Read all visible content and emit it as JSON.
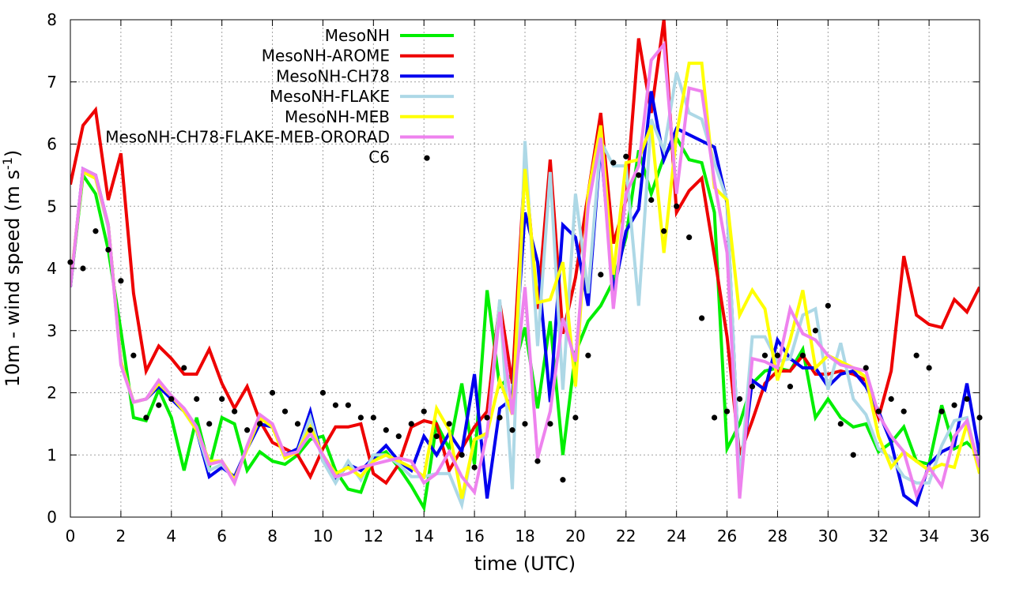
{
  "chart_data": {
    "type": "line",
    "title": "",
    "xlabel": "time (UTC)",
    "ylabel": "10m - wind speed  (m s",
    "ylabel_sup": "-1",
    "ylabel_end": ")",
    "xlim": [
      0,
      36
    ],
    "ylim": [
      0,
      8
    ],
    "xticks": [
      0,
      2,
      4,
      6,
      8,
      10,
      12,
      14,
      16,
      18,
      20,
      22,
      24,
      26,
      28,
      30,
      32,
      34,
      36
    ],
    "yticks": [
      0,
      1,
      2,
      3,
      4,
      5,
      6,
      7,
      8
    ],
    "grid": true,
    "legend_position": "top-left",
    "x": [
      0,
      0.5,
      1,
      1.5,
      2,
      2.5,
      3,
      3.5,
      4,
      4.5,
      5,
      5.5,
      6,
      6.5,
      7,
      7.5,
      8,
      8.5,
      9,
      9.5,
      10,
      10.5,
      11,
      11.5,
      12,
      12.5,
      13,
      13.5,
      14,
      14.5,
      15,
      15.5,
      16,
      16.5,
      17,
      17.5,
      18,
      18.5,
      19,
      19.5,
      20,
      20.5,
      21,
      21.5,
      22,
      22.5,
      23,
      23.5,
      24,
      24.5,
      25,
      25.5,
      26,
      26.5,
      27,
      27.5,
      28,
      28.5,
      29,
      29.5,
      30,
      30.5,
      31,
      31.5,
      32,
      32.5,
      33,
      33.5,
      34,
      34.5,
      35,
      35.5,
      36
    ],
    "series": [
      {
        "name": "MesoNH",
        "color": "#00ee00",
        "values": [
          3.7,
          5.5,
          5.2,
          4.3,
          3.0,
          1.6,
          1.55,
          2.05,
          1.6,
          0.75,
          1.6,
          0.8,
          1.6,
          1.5,
          0.75,
          1.05,
          0.9,
          0.85,
          1.0,
          1.25,
          1.3,
          0.75,
          0.45,
          0.4,
          0.95,
          1.05,
          0.8,
          0.5,
          0.15,
          1.5,
          1.1,
          2.15,
          0.85,
          3.65,
          2.1,
          2.3,
          3.05,
          1.75,
          3.15,
          1.0,
          2.65,
          3.15,
          3.4,
          3.8,
          4.5,
          5.9,
          5.2,
          5.8,
          6.1,
          5.75,
          5.7,
          4.9,
          1.1,
          1.5,
          2.15,
          2.35,
          2.4,
          2.35,
          2.7,
          1.6,
          1.9,
          1.6,
          1.45,
          1.5,
          1.05,
          1.2,
          1.45,
          0.9,
          0.85,
          1.8,
          1.1,
          1.2,
          1.0
        ]
      },
      {
        "name": "MesoNH-AROME",
        "color": "#ee0000",
        "values": [
          5.35,
          6.3,
          6.55,
          5.1,
          5.85,
          3.6,
          2.35,
          2.75,
          2.55,
          2.3,
          2.3,
          2.7,
          2.15,
          1.75,
          2.1,
          1.55,
          1.2,
          1.1,
          1.0,
          0.65,
          1.1,
          1.45,
          1.45,
          1.5,
          0.7,
          0.55,
          0.85,
          1.45,
          1.55,
          1.5,
          0.75,
          1.1,
          1.45,
          1.7,
          3.45,
          2.15,
          5.7,
          3.35,
          5.75,
          2.95,
          3.85,
          5.2,
          6.5,
          4.4,
          5.1,
          7.7,
          6.5,
          8.0,
          4.9,
          5.25,
          5.45,
          4.2,
          2.9,
          1.0,
          1.55,
          2.15,
          2.35,
          2.35,
          2.6,
          2.3,
          2.3,
          2.35,
          2.3,
          2.2,
          1.6,
          2.35,
          4.2,
          3.25,
          3.1,
          3.05,
          3.5,
          3.3,
          3.7
        ]
      },
      {
        "name": "MesoNH-CH78",
        "color": "#0000ee",
        "values": [
          3.7,
          5.6,
          5.5,
          4.7,
          2.5,
          1.85,
          1.9,
          2.1,
          1.9,
          1.7,
          1.4,
          0.65,
          0.8,
          0.65,
          1.1,
          1.5,
          1.45,
          1.0,
          1.1,
          1.7,
          0.9,
          0.6,
          0.85,
          0.75,
          0.95,
          1.15,
          0.9,
          0.75,
          1.3,
          1.0,
          1.35,
          1.05,
          2.3,
          0.3,
          1.75,
          1.9,
          4.9,
          4.1,
          1.85,
          4.7,
          4.5,
          3.4,
          6.0,
          3.6,
          4.6,
          4.95,
          6.85,
          5.75,
          6.25,
          6.15,
          6.05,
          5.95,
          5.05,
          0.55,
          2.2,
          2.05,
          2.85,
          2.55,
          2.4,
          2.4,
          2.1,
          2.3,
          2.35,
          2.1,
          1.7,
          1.2,
          0.35,
          0.2,
          0.85,
          1.05,
          1.15,
          2.15,
          1.0
        ]
      },
      {
        "name": "MesoNH-FLAKE",
        "color": "#add8e6",
        "values": [
          3.75,
          5.55,
          5.45,
          4.65,
          2.5,
          1.85,
          1.9,
          2.15,
          1.95,
          1.7,
          1.4,
          0.75,
          0.85,
          0.6,
          1.1,
          1.6,
          1.45,
          1.0,
          1.05,
          1.6,
          0.9,
          0.55,
          0.9,
          0.6,
          1.0,
          1.0,
          0.85,
          0.65,
          0.65,
          0.7,
          0.7,
          0.2,
          1.25,
          1.3,
          3.5,
          0.45,
          6.05,
          2.75,
          5.55,
          2.05,
          5.2,
          3.6,
          6.05,
          5.65,
          5.65,
          3.4,
          6.4,
          5.9,
          7.15,
          6.5,
          6.4,
          5.7,
          5.1,
          0.5,
          2.9,
          2.9,
          2.5,
          2.55,
          3.25,
          3.35,
          2.05,
          2.8,
          1.9,
          1.65,
          1.1,
          0.95,
          0.65,
          0.55,
          0.55,
          1.15,
          1.55,
          1.6,
          0.75
        ]
      },
      {
        "name": "MesoNH-MEB",
        "color": "#ffff00",
        "values": [
          3.75,
          5.55,
          5.45,
          4.7,
          2.5,
          1.85,
          1.9,
          2.15,
          1.95,
          1.7,
          1.4,
          0.9,
          0.9,
          0.6,
          1.1,
          1.6,
          1.45,
          0.95,
          1.05,
          1.45,
          1.0,
          0.7,
          0.8,
          0.65,
          0.9,
          1.0,
          0.9,
          0.8,
          0.65,
          1.75,
          1.4,
          0.3,
          1.25,
          1.35,
          2.2,
          1.65,
          5.6,
          3.45,
          3.5,
          4.1,
          2.1,
          5.2,
          6.3,
          3.9,
          5.7,
          5.75,
          6.3,
          4.25,
          6.15,
          7.3,
          7.3,
          5.3,
          5.1,
          3.25,
          3.65,
          3.35,
          2.2,
          2.85,
          3.65,
          2.4,
          2.6,
          2.5,
          2.4,
          2.25,
          1.3,
          0.8,
          1.05,
          0.9,
          0.75,
          0.85,
          0.8,
          1.5,
          0.7
        ]
      },
      {
        "name": "MesoNH-CH78-FLAKE-MEB-ORORAD",
        "color": "#ee82ee",
        "values": [
          3.7,
          5.6,
          5.5,
          4.7,
          2.45,
          1.85,
          1.9,
          2.2,
          1.95,
          1.75,
          1.45,
          0.85,
          0.9,
          0.55,
          1.15,
          1.65,
          1.5,
          1.0,
          1.05,
          1.35,
          1.0,
          0.65,
          0.7,
          0.8,
          0.85,
          0.9,
          0.95,
          0.9,
          0.55,
          0.7,
          1.05,
          0.65,
          0.4,
          1.35,
          3.3,
          1.65,
          3.7,
          0.95,
          1.7,
          3.2,
          2.5,
          5.0,
          6.1,
          3.35,
          5.2,
          5.65,
          7.35,
          7.6,
          5.2,
          6.9,
          6.85,
          5.4,
          4.25,
          0.3,
          2.55,
          2.5,
          2.4,
          3.35,
          2.95,
          2.85,
          2.6,
          2.45,
          2.4,
          2.35,
          1.65,
          1.3,
          1.05,
          0.35,
          0.8,
          0.5,
          1.3,
          1.55,
          0.8
        ]
      },
      {
        "name": "C6",
        "color": "#000000",
        "marker": "dot",
        "points": [
          [
            0,
            4.1
          ],
          [
            0.5,
            4.0
          ],
          [
            1,
            4.6
          ],
          [
            1.5,
            4.3
          ],
          [
            2,
            3.8
          ],
          [
            2.5,
            2.6
          ],
          [
            3,
            1.6
          ],
          [
            3.5,
            1.8
          ],
          [
            4,
            1.9
          ],
          [
            4.5,
            2.4
          ],
          [
            5,
            1.9
          ],
          [
            5.5,
            1.5
          ],
          [
            6,
            1.9
          ],
          [
            6.5,
            1.7
          ],
          [
            7,
            1.4
          ],
          [
            7.5,
            1.5
          ],
          [
            8,
            2.0
          ],
          [
            8.5,
            1.7
          ],
          [
            9,
            1.5
          ],
          [
            9.5,
            1.4
          ],
          [
            10,
            2.0
          ],
          [
            10.5,
            1.8
          ],
          [
            11,
            1.8
          ],
          [
            11.5,
            1.6
          ],
          [
            12,
            1.6
          ],
          [
            12.5,
            1.4
          ],
          [
            13,
            1.3
          ],
          [
            13.5,
            1.5
          ],
          [
            14,
            1.7
          ],
          [
            14.5,
            1.3
          ],
          [
            15,
            1.5
          ],
          [
            15.5,
            1.0
          ],
          [
            16,
            0.8
          ],
          [
            16.5,
            1.6
          ],
          [
            17,
            1.6
          ],
          [
            17.5,
            1.4
          ],
          [
            18,
            1.5
          ],
          [
            18.5,
            0.9
          ],
          [
            19,
            1.5
          ],
          [
            19.5,
            0.6
          ],
          [
            20,
            1.6
          ],
          [
            20.5,
            2.6
          ],
          [
            21,
            3.9
          ],
          [
            21.5,
            5.7
          ],
          [
            22,
            5.8
          ],
          [
            22.5,
            5.5
          ],
          [
            23,
            5.1
          ],
          [
            23.5,
            4.6
          ],
          [
            24,
            5.0
          ],
          [
            24.5,
            4.5
          ],
          [
            25,
            3.2
          ],
          [
            25.5,
            1.6
          ],
          [
            26,
            1.7
          ],
          [
            26.5,
            1.9
          ],
          [
            27,
            2.1
          ],
          [
            27.5,
            2.6
          ],
          [
            28,
            2.6
          ],
          [
            28.5,
            2.1
          ],
          [
            29,
            2.6
          ],
          [
            29.5,
            3.0
          ],
          [
            30,
            3.4
          ],
          [
            30.5,
            1.5
          ],
          [
            31,
            1.0
          ],
          [
            31.5,
            2.4
          ],
          [
            32,
            1.7
          ],
          [
            32.5,
            1.9
          ],
          [
            33,
            1.7
          ],
          [
            33.5,
            2.6
          ],
          [
            34,
            2.4
          ],
          [
            34.5,
            1.7
          ],
          [
            35,
            1.8
          ],
          [
            35.5,
            1.9
          ],
          [
            36,
            1.6
          ]
        ]
      }
    ]
  }
}
